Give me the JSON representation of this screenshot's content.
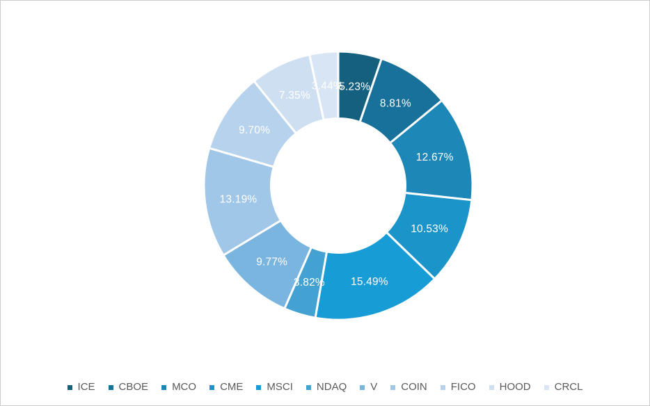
{
  "chart_data": {
    "type": "pie",
    "subtype": "donut",
    "categories": [
      "ICE",
      "CBOE",
      "MCO",
      "CME",
      "MSCI",
      "NDAQ",
      "V",
      "COIN",
      "FICO",
      "HOOD",
      "CRCL"
    ],
    "values": [
      5.23,
      8.81,
      12.67,
      10.53,
      15.49,
      3.82,
      9.77,
      13.19,
      9.7,
      7.35,
      3.44
    ],
    "data_labels": [
      "5.23%",
      "8.81%",
      "12.67%",
      "10.53%",
      "15.49%",
      "3.82%",
      "9.77%",
      "13.19%",
      "9.70%",
      "7.35%",
      "3.44%"
    ],
    "colors": [
      "#16607F",
      "#17719B",
      "#1D87B7",
      "#1B95C9",
      "#189CD6",
      "#44A2D2",
      "#79B5DF",
      "#A0C6E8",
      "#B7D2EC",
      "#CEDFF2",
      "#D7E5F4"
    ],
    "start_angle_deg": 0,
    "direction": "clockwise",
    "hole_ratio": 0.5,
    "label_color": "#FFFFFF",
    "background_color": "#FFFFFF",
    "legend": {
      "position": "bottom",
      "entries": [
        "ICE",
        "CBOE",
        "MCO",
        "CME",
        "MSCI",
        "NDAQ",
        "V",
        "COIN",
        "FICO",
        "HOOD",
        "CRCL"
      ],
      "text_color": "#595959"
    }
  }
}
